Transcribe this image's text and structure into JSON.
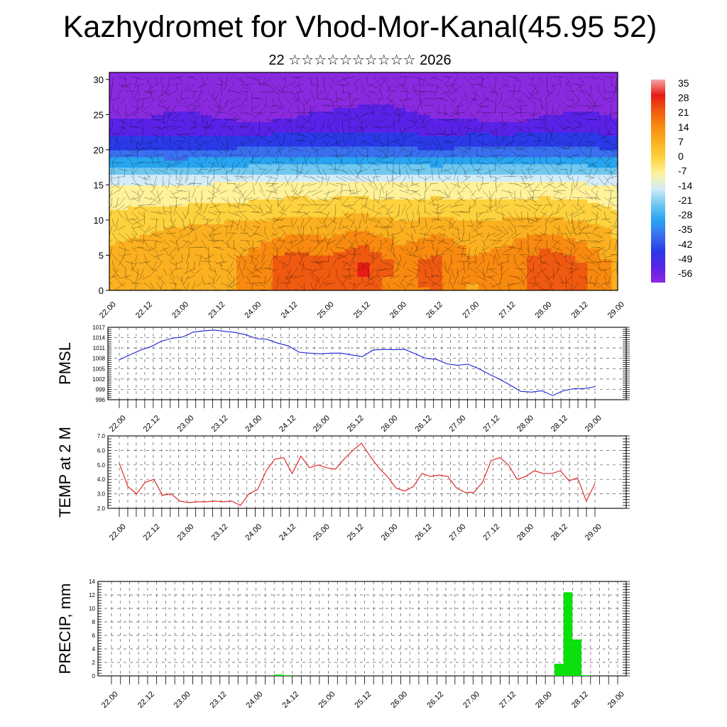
{
  "header": {
    "title": "Kazhydromet for Vhod-Mor-Kanal(45.95 52)",
    "subtitle": "22 ☆☆☆☆☆☆☆☆☆☆ 2026"
  },
  "x_tick_labels": [
    "22.00",
    "22.12",
    "23.00",
    "23.12",
    "24.00",
    "24.12",
    "25.00",
    "25.12",
    "26.00",
    "26.12",
    "27.00",
    "27.12",
    "28.00",
    "28.12",
    "29.00"
  ],
  "chart_data": [
    {
      "type": "heatmap",
      "title": "",
      "xlabel": "",
      "ylabel": "",
      "ylim": [
        0,
        31
      ],
      "yticks": [
        0,
        5,
        10,
        15,
        20,
        25,
        30
      ],
      "x_ticks": [
        "22.00",
        "22.12",
        "23.00",
        "23.12",
        "24.00",
        "24.12",
        "25.00",
        "25.12",
        "26.00",
        "26.12",
        "27.00",
        "27.12",
        "28.00",
        "28.12",
        "29.00"
      ],
      "colorbar": {
        "labels": [
          "35",
          "28",
          "21",
          "14",
          "7",
          "0",
          "-7",
          "-14",
          "-21",
          "-28",
          "-35",
          "-42",
          "-49",
          "-56"
        ],
        "colors": [
          "#f4a6a6",
          "#e81a14",
          "#f05a10",
          "#f88a10",
          "#fbb020",
          "#fdd23e",
          "#fff29a",
          "#d4ecf8",
          "#70c8f0",
          "#28a4f0",
          "#3a70f0",
          "#2a3ae8",
          "#5a22e8",
          "#8a2ae0"
        ]
      },
      "levels": [
        {
          "z": 0,
          "temps": [
            8,
            8,
            9,
            9,
            12,
            21,
            18,
            24,
            12,
            20,
            10,
            12,
            22,
            20,
            10
          ]
        },
        {
          "z": 4,
          "temps": [
            6,
            6,
            7,
            8,
            14,
            22,
            20,
            25,
            16,
            20,
            12,
            14,
            24,
            18,
            8
          ]
        },
        {
          "z": 9,
          "temps": [
            1,
            3,
            4,
            5,
            6,
            8,
            7,
            9,
            6,
            8,
            6,
            7,
            8,
            6,
            2
          ]
        },
        {
          "z": 15,
          "temps": [
            -10,
            -10,
            -10,
            -9,
            -9,
            -8,
            -8,
            -8,
            -9,
            -8,
            -9,
            -9,
            -8,
            -9,
            -10
          ]
        },
        {
          "z": 20,
          "temps": [
            -38,
            -38,
            -39,
            -38,
            -37,
            -36,
            -37,
            -36,
            -37,
            -38,
            -37,
            -36,
            -36,
            -37,
            -38
          ]
        },
        {
          "z": 24,
          "temps": [
            -52,
            -52,
            -51,
            -52,
            -53,
            -52,
            -51,
            -50,
            -51,
            -52,
            -52,
            -53,
            -52,
            -51,
            -52
          ]
        },
        {
          "z": 31,
          "temps": [
            -57,
            -57,
            -58,
            -57,
            -56,
            -57,
            -58,
            -57,
            -56,
            -57,
            -58,
            -57,
            -56,
            -57,
            -57
          ]
        }
      ]
    },
    {
      "type": "line",
      "ylabel": "PMSL",
      "ylim": [
        996,
        1017
      ],
      "yticks": [
        996,
        999,
        1002,
        1005,
        1008,
        1011,
        1014,
        1017
      ],
      "color": "#1a22d8",
      "values": [
        1007.6,
        1009,
        1010.4,
        1011.4,
        1013,
        1013.8,
        1014.2,
        1015.6,
        1016,
        1016.2,
        1015.8,
        1015.5,
        1014.8,
        1013.7,
        1013.5,
        1012.4,
        1011.6,
        1009.8,
        1009.5,
        1009.3,
        1009.5,
        1009.5,
        1009.0,
        1008.5,
        1010.4,
        1010.6,
        1010.5,
        1010.6,
        1009.3,
        1008.0,
        1007.7,
        1006.4,
        1006.0,
        1006.3,
        1005,
        1003.4,
        1001.9,
        1000.2,
        998.4,
        998.2,
        998.6,
        997.2,
        998.6,
        999.2,
        999.2,
        999.8
      ]
    },
    {
      "type": "line",
      "ylabel": "TEMP at 2 M",
      "ylim": [
        2.0,
        7.0
      ],
      "yticks": [
        "2.0",
        "3.0",
        "4.0",
        "5.0",
        "6.0",
        "7.0"
      ],
      "color": "#e01a1a",
      "values": [
        5.1,
        3.5,
        3.0,
        3.8,
        4.0,
        2.9,
        3.0,
        2.5,
        2.4,
        2.45,
        2.45,
        2.5,
        2.45,
        2.5,
        2.2,
        3.0,
        3.3,
        4.6,
        5.4,
        5.5,
        4.4,
        5.6,
        4.8,
        5.0,
        4.8,
        4.7,
        5.4,
        6.0,
        6.5,
        5.6,
        4.8,
        4.2,
        3.4,
        3.2,
        3.5,
        4.4,
        4.2,
        4.3,
        4.2,
        3.4,
        3.1,
        3.1,
        3.8,
        5.3,
        5.5,
        5.0,
        4.0,
        4.2,
        4.6,
        4.4,
        4.4,
        4.6,
        3.9,
        4.1,
        2.5,
        3.7
      ]
    },
    {
      "type": "bar",
      "ylabel": "PRECIP, mm",
      "ylim": [
        0,
        14
      ],
      "yticks": [
        0,
        2,
        4,
        6,
        8,
        10,
        12,
        14
      ],
      "color": "#0ae00a",
      "values": [
        0,
        0,
        0,
        0,
        0,
        0,
        0,
        0,
        0,
        0,
        0,
        0,
        0,
        0,
        0,
        0,
        0,
        0,
        0.2,
        0.1,
        0,
        0,
        0,
        0,
        0,
        0,
        0,
        0,
        0,
        0,
        0,
        0,
        0,
        0,
        0,
        0,
        0,
        0,
        0,
        0,
        0,
        0,
        0,
        0,
        0,
        0,
        0,
        0,
        0,
        1.8,
        12.4,
        5.4,
        0.1,
        0,
        0,
        0
      ]
    }
  ]
}
